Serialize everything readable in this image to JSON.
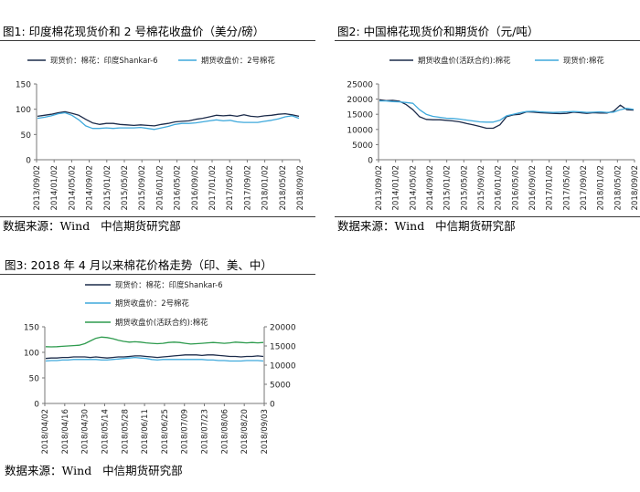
{
  "source_prefix": "数据来源：",
  "source_wind": "Wind",
  "source_org": "中信期货研究部",
  "chart_data": [
    {
      "type": "line",
      "title": "图1: 印度棉花现货价和 2 号棉花收盘价（美分/磅）",
      "xlabel": "",
      "ylabel": "",
      "ylim": [
        0,
        150
      ],
      "y_ticks": [
        0,
        50,
        100,
        150
      ],
      "x_tick_labels": [
        "2013/09/02",
        "2014/01/02",
        "2014/05/02",
        "2014/09/02",
        "2015/01/02",
        "2015/05/02",
        "2015/09/02",
        "2016/01/02",
        "2016/05/02",
        "2016/09/02",
        "2017/01/02",
        "2017/05/02",
        "2017/09/02",
        "2018/01/02",
        "2018/05/02",
        "2018/09/02"
      ],
      "legend_position": "top",
      "grid": false,
      "series": [
        {
          "name": "现货价：棉花：印度Shankar-6",
          "color": "#1c2b4a",
          "axis": "left",
          "values": [
            86,
            88,
            90,
            93,
            95,
            92,
            88,
            80,
            73,
            70,
            72,
            72,
            70,
            69,
            68,
            69,
            68,
            67,
            70,
            72,
            75,
            76,
            77,
            80,
            82,
            85,
            88,
            87,
            88,
            86,
            89,
            86,
            85,
            87,
            88,
            90,
            91,
            89,
            86
          ]
        },
        {
          "name": "期货收盘价：2号棉花",
          "color": "#3fa9dc",
          "axis": "left",
          "values": [
            82,
            84,
            87,
            91,
            93,
            88,
            79,
            67,
            62,
            62,
            63,
            62,
            63,
            63,
            63,
            64,
            62,
            60,
            63,
            66,
            70,
            72,
            72,
            73,
            75,
            77,
            79,
            77,
            78,
            75,
            74,
            74,
            74,
            76,
            78,
            81,
            85,
            87,
            82
          ]
        }
      ]
    },
    {
      "type": "line",
      "title": "图2: 中国棉花现货价和期货价（元/吨）",
      "xlabel": "",
      "ylabel": "",
      "ylim": [
        0,
        25000
      ],
      "y_ticks": [
        0,
        5000,
        10000,
        15000,
        20000,
        25000
      ],
      "x_tick_labels": [
        "2013/09/02",
        "2014/01/02",
        "2014/05/02",
        "2014/09/02",
        "2015/01/02",
        "2015/05/02",
        "2015/09/02",
        "2016/01/02",
        "2016/05/02",
        "2016/09/02",
        "2017/01/02",
        "2017/05/02",
        "2017/09/02",
        "2018/01/02",
        "2018/05/02",
        "2018/09/02"
      ],
      "legend_position": "top",
      "grid": false,
      "series": [
        {
          "name": "期货收盘价(活跃合约):棉花",
          "color": "#1c2b4a",
          "axis": "left",
          "values": [
            19800,
            19500,
            19600,
            19300,
            18200,
            16500,
            14200,
            13300,
            13200,
            13200,
            13000,
            12800,
            12500,
            12000,
            11500,
            11000,
            10400,
            10400,
            11500,
            14200,
            14800,
            15000,
            15800,
            15700,
            15500,
            15400,
            15300,
            15200,
            15300,
            15700,
            15500,
            15300,
            15500,
            15400,
            15400,
            16000,
            18000,
            16500,
            16400
          ]
        },
        {
          "name": "现货价:棉花",
          "color": "#3fa9dc",
          "axis": "left",
          "values": [
            19400,
            19400,
            19200,
            19100,
            18900,
            18600,
            16500,
            15000,
            14300,
            14000,
            13700,
            13600,
            13400,
            13100,
            12800,
            12500,
            12400,
            12400,
            13000,
            14500,
            15000,
            15500,
            15900,
            16000,
            15800,
            15700,
            15600,
            15700,
            15800,
            15900,
            15800,
            15600,
            15700,
            15800,
            15600,
            15700,
            16500,
            17000,
            16600
          ]
        }
      ]
    },
    {
      "type": "line",
      "title": "图3: 2018 年 4 月以来棉花价格走势（印、美、中）",
      "xlabel": "",
      "ylabel": "",
      "ylim": [
        0,
        150
      ],
      "y2lim": [
        0,
        20000
      ],
      "y_ticks": [
        0,
        50,
        100,
        150
      ],
      "y2_ticks": [
        0,
        5000,
        10000,
        15000,
        20000
      ],
      "x_tick_labels": [
        "2018/04/02",
        "2018/04/16",
        "2018/04/30",
        "2018/05/14",
        "2018/05/28",
        "2018/06/11",
        "2018/06/25",
        "2018/07/09",
        "2018/07/23",
        "2018/08/06",
        "2018/08/20",
        "2018/09/03"
      ],
      "legend_position": "top",
      "grid": false,
      "series": [
        {
          "name": "现货价：棉花：印度Shankar-6",
          "color": "#1c2b4a",
          "axis": "left",
          "values": [
            88,
            89,
            89,
            90,
            90,
            91,
            91,
            91,
            90,
            91,
            90,
            89,
            90,
            91,
            91,
            92,
            93,
            93,
            92,
            91,
            90,
            91,
            92,
            93,
            94,
            95,
            95,
            95,
            94,
            95,
            95,
            94,
            93,
            92,
            92,
            91,
            92,
            92,
            93,
            92
          ]
        },
        {
          "name": "期货收盘价：2号棉花",
          "color": "#3fa9dc",
          "axis": "left",
          "values": [
            83,
            84,
            84,
            85,
            85,
            86,
            86,
            86,
            86,
            86,
            85,
            85,
            86,
            87,
            88,
            89,
            90,
            89,
            88,
            86,
            85,
            86,
            86,
            86,
            86,
            86,
            86,
            86,
            86,
            85,
            85,
            84,
            84,
            83,
            83,
            83,
            84,
            84,
            84,
            83
          ]
        },
        {
          "name": "期货收盘价(活跃合约):棉花",
          "color": "#2e9b4e",
          "axis": "right",
          "values": [
            14800,
            14750,
            14800,
            14900,
            15000,
            15100,
            15200,
            15600,
            16300,
            17000,
            17300,
            17200,
            16900,
            16500,
            16200,
            16000,
            16100,
            16000,
            15800,
            15700,
            15600,
            15700,
            15900,
            16000,
            15900,
            15700,
            15500,
            15600,
            15700,
            15800,
            15900,
            15800,
            15700,
            15800,
            16000,
            15900,
            15800,
            15900,
            15800,
            15900
          ]
        }
      ]
    }
  ]
}
